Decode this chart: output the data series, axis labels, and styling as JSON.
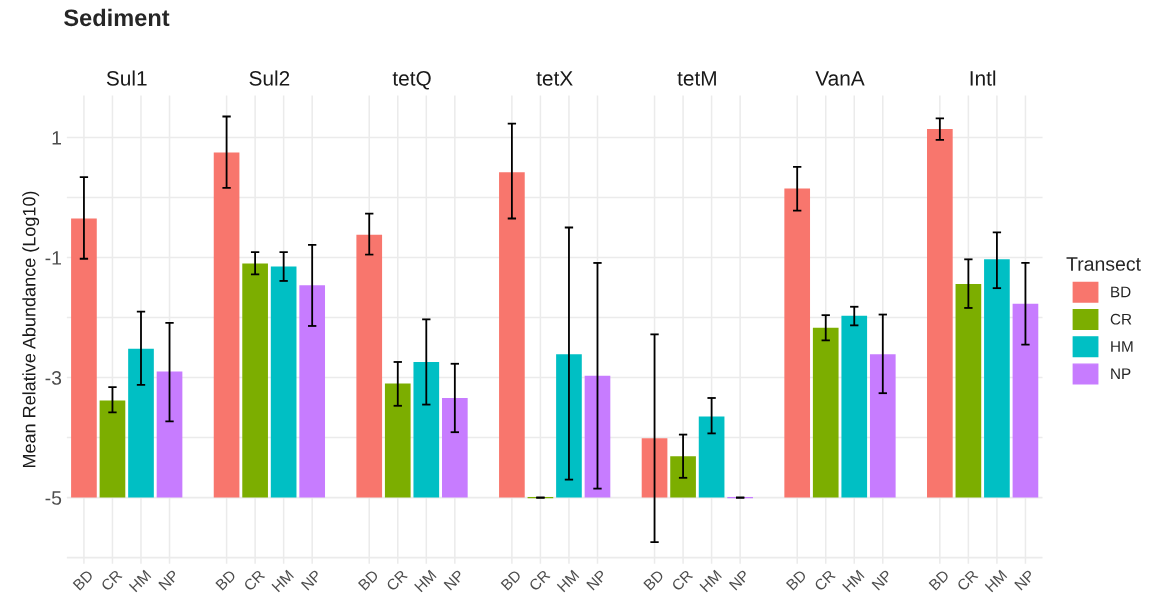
{
  "chart_data": {
    "type": "bar",
    "title": "Sediment",
    "ylabel": "Mean Relative Abundance (Log10)",
    "legend_title": "Transect",
    "legend": "right",
    "grid": true,
    "annotations": [
      "Sul1",
      "Sul2",
      "tetQ",
      "tetX",
      "tetM",
      "VanA",
      "Intl"
    ],
    "categories": [
      "BD",
      "CR",
      "HM",
      "NP",
      null,
      "BD",
      "CR",
      "HM",
      "NP",
      null,
      "BD",
      "CR",
      "HM",
      "NP",
      null,
      "BD",
      "CR",
      "HM",
      "NP",
      null,
      "BD",
      "CR",
      "HM",
      "NP",
      null,
      "BD",
      "CR",
      "HM",
      "NP",
      null,
      "BD",
      "CR",
      "HM",
      "NP"
    ],
    "ylim": [
      -6.1,
      1.7
    ],
    "yticks": [
      {
        "value": -6,
        "label": null
      },
      -5,
      {
        "value": -4,
        "label": null
      },
      -3,
      {
        "value": -2,
        "label": null
      },
      -1,
      {
        "value": 0,
        "label": null
      },
      1
    ],
    "series": [
      {
        "name": "BD",
        "color": "#f8766d",
        "base": [
          -5,
          null,
          null,
          null,
          null,
          -5,
          null,
          null,
          null,
          null,
          -5,
          null,
          null,
          null,
          null,
          -5,
          null,
          null,
          null,
          null,
          -5,
          null,
          null,
          null,
          null,
          -5,
          null,
          null,
          null,
          null,
          -5,
          null,
          null,
          null
        ],
        "values": [
          4.65,
          null,
          null,
          null,
          null,
          5.75,
          null,
          null,
          null,
          null,
          4.38,
          null,
          null,
          null,
          null,
          5.42,
          null,
          null,
          null,
          null,
          0.99,
          null,
          null,
          null,
          null,
          5.15,
          null,
          null,
          null,
          null,
          6.14,
          null,
          null,
          null
        ],
        "errors": [
          [
            -1.02,
            0.34
          ],
          null,
          null,
          null,
          null,
          [
            0.16,
            1.35
          ],
          null,
          null,
          null,
          null,
          [
            -0.95,
            -0.27
          ],
          null,
          null,
          null,
          null,
          [
            -0.35,
            1.23
          ],
          null,
          null,
          null,
          null,
          [
            -5.74,
            -2.28
          ],
          null,
          null,
          null,
          null,
          [
            -0.22,
            0.51
          ],
          null,
          null,
          null,
          null,
          [
            0.96,
            1.32
          ],
          null,
          null,
          null
        ]
      },
      {
        "name": "CR",
        "color": "#7cae00",
        "base": [
          null,
          -5,
          null,
          null,
          null,
          null,
          -5,
          null,
          null,
          null,
          null,
          -5,
          null,
          null,
          null,
          null,
          -5,
          null,
          null,
          null,
          null,
          -5,
          null,
          null,
          null,
          null,
          -5,
          null,
          null,
          null,
          null,
          -5,
          null,
          null
        ],
        "values": [
          null,
          1.62,
          null,
          null,
          null,
          null,
          3.9,
          null,
          null,
          null,
          null,
          1.9,
          null,
          null,
          null,
          null,
          0,
          null,
          null,
          null,
          null,
          0.69,
          null,
          null,
          null,
          null,
          2.83,
          null,
          null,
          null,
          null,
          3.56,
          null,
          null
        ],
        "errors": [
          null,
          [
            -3.58,
            -3.16
          ],
          null,
          null,
          null,
          null,
          [
            -1.28,
            -0.91
          ],
          null,
          null,
          null,
          null,
          [
            -3.47,
            -2.74
          ],
          null,
          null,
          null,
          null,
          [
            -5,
            -5
          ],
          null,
          null,
          null,
          null,
          [
            -4.67,
            -3.95
          ],
          null,
          null,
          null,
          null,
          [
            -2.38,
            -1.96
          ],
          null,
          null,
          null,
          null,
          [
            -1.84,
            -1.03
          ],
          null,
          null
        ]
      },
      {
        "name": "HM",
        "color": "#00bfc4",
        "base": [
          null,
          null,
          -5,
          null,
          null,
          null,
          null,
          -5,
          null,
          null,
          null,
          null,
          -5,
          null,
          null,
          null,
          null,
          -5,
          null,
          null,
          null,
          null,
          -5,
          null,
          null,
          null,
          null,
          -5,
          null,
          null,
          null,
          null,
          -5,
          null
        ],
        "values": [
          null,
          null,
          2.48,
          null,
          null,
          null,
          null,
          3.85,
          null,
          null,
          null,
          null,
          2.26,
          null,
          null,
          null,
          null,
          2.39,
          null,
          null,
          null,
          null,
          1.35,
          null,
          null,
          null,
          null,
          3.03,
          null,
          null,
          null,
          null,
          3.97,
          null
        ],
        "errors": [
          null,
          null,
          [
            -3.12,
            -1.9
          ],
          null,
          null,
          null,
          null,
          [
            -1.39,
            -0.91
          ],
          null,
          null,
          null,
          null,
          [
            -3.45,
            -2.03
          ],
          null,
          null,
          null,
          null,
          [
            -4.7,
            -0.5
          ],
          null,
          null,
          null,
          null,
          [
            -3.93,
            -3.34
          ],
          null,
          null,
          null,
          null,
          [
            -2.13,
            -1.82
          ],
          null,
          null,
          null,
          null,
          [
            -1.51,
            -0.58
          ],
          null
        ]
      },
      {
        "name": "NP",
        "color": "#c77cff",
        "base": [
          null,
          null,
          null,
          -5,
          null,
          null,
          null,
          null,
          -5,
          null,
          null,
          null,
          null,
          -5,
          null,
          null,
          null,
          null,
          -5,
          null,
          null,
          null,
          null,
          -5,
          null,
          null,
          null,
          null,
          -5,
          null,
          null,
          null,
          null,
          -5
        ],
        "values": [
          null,
          null,
          null,
          2.1,
          null,
          null,
          null,
          null,
          3.54,
          null,
          null,
          null,
          null,
          1.66,
          null,
          null,
          null,
          null,
          2.03,
          null,
          null,
          null,
          null,
          0,
          null,
          null,
          null,
          null,
          2.39,
          null,
          null,
          null,
          null,
          3.23
        ],
        "errors": [
          null,
          null,
          null,
          [
            -3.73,
            -2.09
          ],
          null,
          null,
          null,
          null,
          [
            -2.14,
            -0.79
          ],
          null,
          null,
          null,
          null,
          [
            -3.91,
            -2.77
          ],
          null,
          null,
          null,
          null,
          [
            -4.85,
            -1.09
          ],
          null,
          null,
          null,
          null,
          [
            -5,
            -5
          ],
          null,
          null,
          null,
          null,
          [
            -3.26,
            -1.95
          ],
          null,
          null,
          null,
          null,
          [
            -2.45,
            -1.09
          ]
        ]
      }
    ]
  }
}
